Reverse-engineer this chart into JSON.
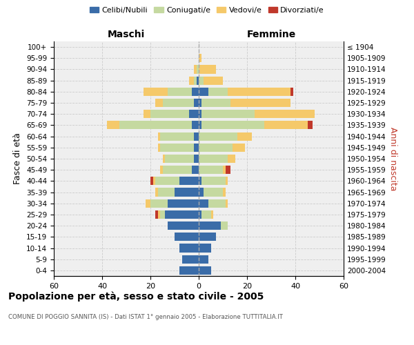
{
  "age_groups": [
    "0-4",
    "5-9",
    "10-14",
    "15-19",
    "20-24",
    "25-29",
    "30-34",
    "35-39",
    "40-44",
    "45-49",
    "50-54",
    "55-59",
    "60-64",
    "65-69",
    "70-74",
    "75-79",
    "80-84",
    "85-89",
    "90-94",
    "95-99",
    "100+"
  ],
  "birth_years": [
    "2000-2004",
    "1995-1999",
    "1990-1994",
    "1985-1989",
    "1980-1984",
    "1975-1979",
    "1970-1974",
    "1965-1969",
    "1960-1964",
    "1955-1959",
    "1950-1954",
    "1945-1949",
    "1940-1944",
    "1935-1939",
    "1930-1934",
    "1925-1929",
    "1920-1924",
    "1915-1919",
    "1910-1914",
    "1905-1909",
    "≤ 1904"
  ],
  "maschi_celibi": [
    8,
    7,
    8,
    10,
    13,
    14,
    13,
    10,
    8,
    3,
    2,
    2,
    2,
    3,
    4,
    2,
    3,
    1,
    0,
    0,
    0
  ],
  "maschi_coniugati": [
    0,
    0,
    0,
    0,
    0,
    2,
    7,
    7,
    10,
    12,
    12,
    14,
    14,
    30,
    16,
    13,
    10,
    1,
    1,
    0,
    0
  ],
  "maschi_vedovi": [
    0,
    0,
    0,
    0,
    0,
    1,
    2,
    1,
    1,
    1,
    1,
    1,
    1,
    5,
    3,
    3,
    10,
    2,
    1,
    0,
    0
  ],
  "maschi_divorziati": [
    0,
    0,
    0,
    0,
    0,
    1,
    0,
    0,
    1,
    0,
    0,
    0,
    0,
    0,
    0,
    0,
    0,
    0,
    0,
    0,
    0
  ],
  "femmine_nubili": [
    5,
    4,
    5,
    7,
    9,
    1,
    4,
    2,
    1,
    0,
    0,
    0,
    0,
    1,
    1,
    1,
    4,
    0,
    0,
    0,
    0
  ],
  "femmine_coniugate": [
    0,
    0,
    0,
    0,
    3,
    4,
    7,
    8,
    10,
    10,
    12,
    14,
    16,
    26,
    22,
    12,
    8,
    2,
    0,
    0,
    0
  ],
  "femmine_vedove": [
    0,
    0,
    0,
    0,
    0,
    1,
    1,
    1,
    1,
    1,
    3,
    5,
    6,
    18,
    25,
    25,
    26,
    8,
    7,
    1,
    0
  ],
  "femmine_divorziate": [
    0,
    0,
    0,
    0,
    0,
    0,
    0,
    0,
    0,
    2,
    0,
    0,
    0,
    2,
    0,
    0,
    1,
    0,
    0,
    0,
    0
  ],
  "color_celibi": "#3a6ca8",
  "color_coniugati": "#c5d9a0",
  "color_vedovi": "#f5c96a",
  "color_divorziati": "#c0382b",
  "xlim": 60,
  "title": "Popolazione per età, sesso e stato civile - 2005",
  "subtitle": "COMUNE DI POGGIO SANNITA (IS) - Dati ISTAT 1° gennaio 2005 - Elaborazione TUTTITALIA.IT",
  "ylabel_left": "Fasce di età",
  "ylabel_right": "Anni di nascita",
  "header_left": "Maschi",
  "header_right": "Femmine",
  "legend_labels": [
    "Celibi/Nubili",
    "Coniugati/e",
    "Vedovi/e",
    "Divorziati/e"
  ],
  "bg_color": "#efefef",
  "bar_height": 0.75
}
